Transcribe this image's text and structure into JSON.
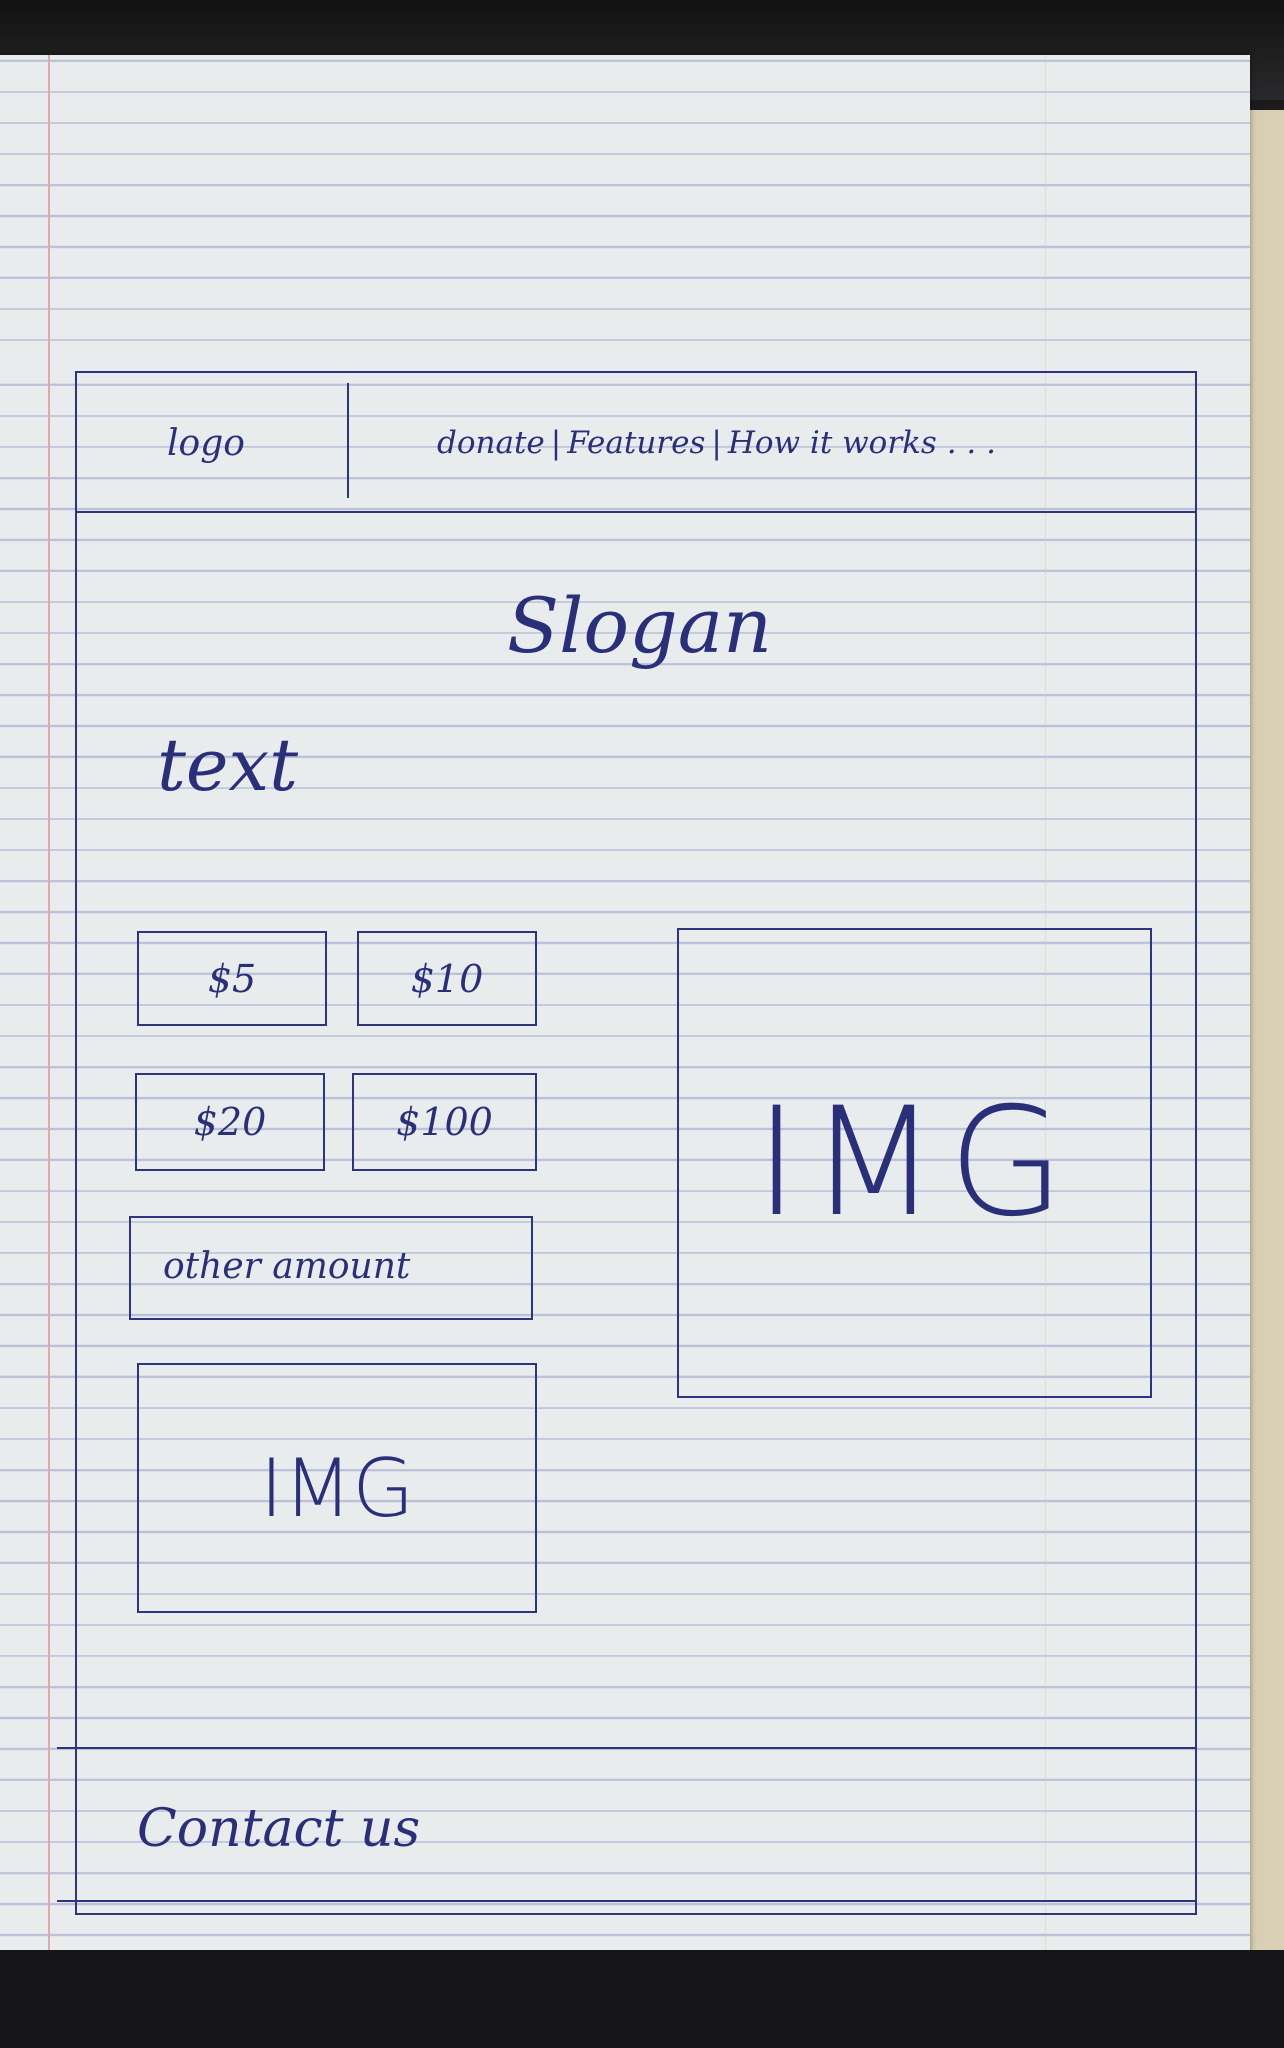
{
  "header": {
    "logo": "logo",
    "nav": [
      {
        "label": "donate"
      },
      {
        "label": "Features"
      },
      {
        "label": "How it works . . ."
      }
    ],
    "separator": "|"
  },
  "hero": {
    "slogan": "Slogan",
    "text": "text"
  },
  "donation": {
    "amounts": [
      "$5",
      "$10",
      "$20",
      "$100"
    ],
    "other_placeholder": "other amount"
  },
  "images": {
    "large_label": "IMG",
    "small_label": "IMG"
  },
  "footer": {
    "contact": "Contact us"
  },
  "colors": {
    "ink": "#2a2f7a",
    "paper": "#e9ecec",
    "rule_lines": "#b9c0d8",
    "margin_line": "#e2a7ab"
  }
}
